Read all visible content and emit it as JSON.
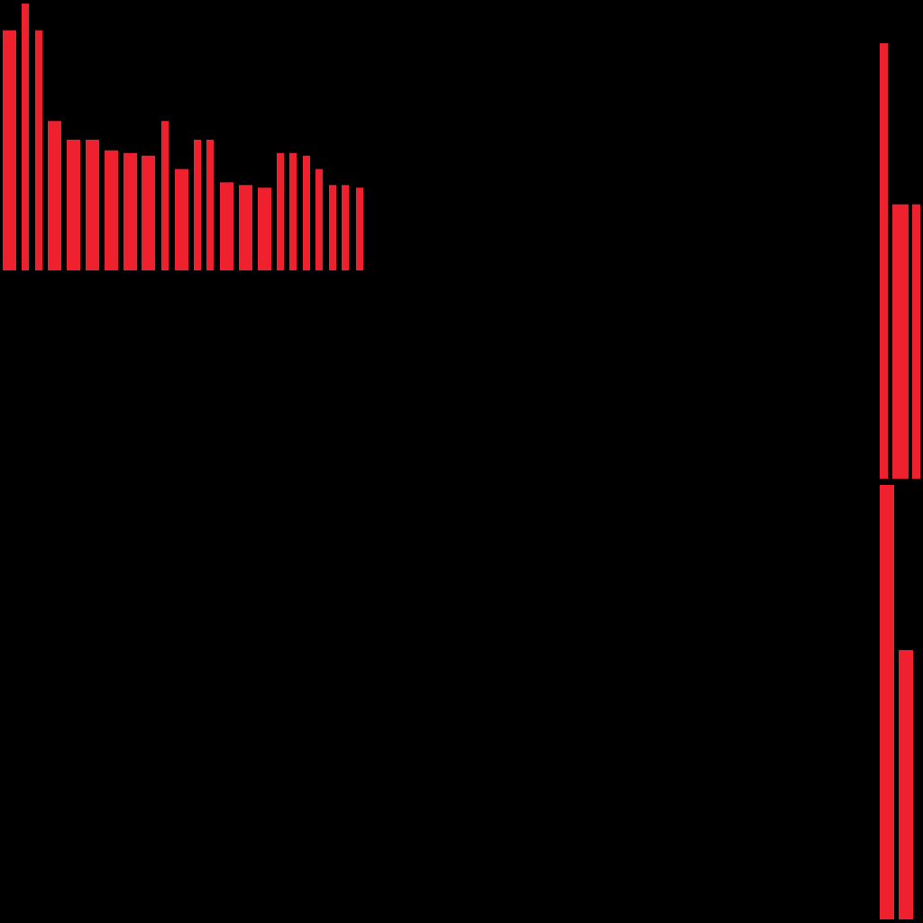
{
  "colors": {
    "background": "#000000",
    "bar": "#f0212f"
  },
  "chart_data": [
    {
      "type": "bar",
      "title": "",
      "xlabel": "",
      "ylabel": "",
      "grid": false,
      "legend": "none",
      "ylim": [
        0,
        100
      ],
      "values": [
        90,
        100,
        90,
        56,
        49,
        49,
        45,
        44,
        43,
        56,
        38,
        49,
        49,
        33,
        32,
        31,
        44,
        44,
        43,
        38,
        32,
        32,
        31
      ]
    },
    {
      "type": "bar",
      "title": "",
      "xlabel": "",
      "ylabel": "",
      "grid": false,
      "legend": "none",
      "ylim": [
        0,
        100
      ],
      "values": [
        100,
        63,
        63,
        63
      ]
    },
    {
      "type": "bar",
      "title": "",
      "xlabel": "",
      "ylabel": "",
      "grid": false,
      "legend": "none",
      "ylim": [
        0,
        100
      ],
      "values": [
        100,
        62
      ]
    }
  ]
}
